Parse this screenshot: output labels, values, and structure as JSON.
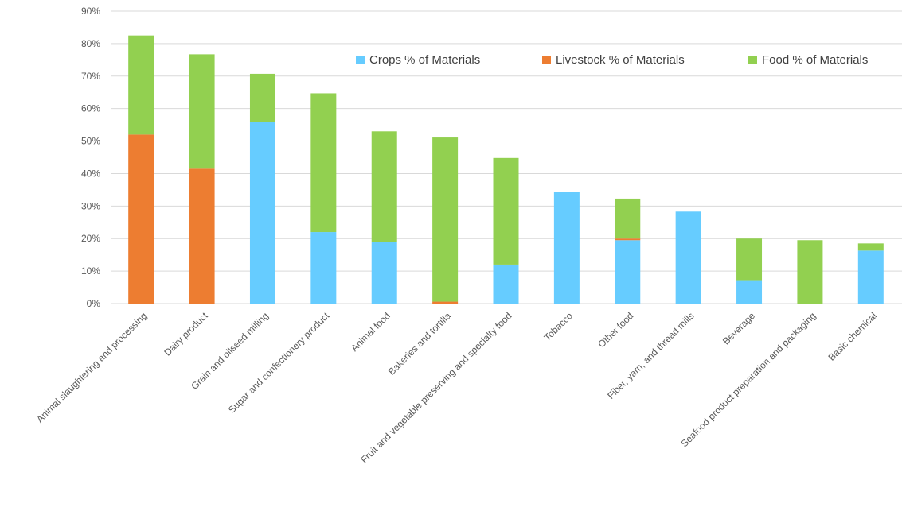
{
  "chart_data": {
    "type": "bar",
    "stacked": true,
    "title": "",
    "xlabel": "",
    "ylabel": "",
    "ylim": [
      0,
      90
    ],
    "yticks": [
      "0%",
      "10%",
      "20%",
      "30%",
      "40%",
      "50%",
      "60%",
      "70%",
      "80%",
      "90%"
    ],
    "grid": true,
    "legend_position": "top-right",
    "categories": [
      "Animal slaughtering and processing",
      "Dairy product",
      "Grain and oilseed milling",
      "Sugar and confectionery product",
      "Animal food",
      "Bakeries and tortilla",
      "Fruit and vegetable preserving and specialty food",
      "Tobacco",
      "Other food",
      "Fiber, yarn, and thread mills",
      "Beverage",
      "Seafood product preparation and packaging",
      "Basic chemical"
    ],
    "series": [
      {
        "name": "Crops % of Materials",
        "color": "#66ccff",
        "values": [
          0,
          0,
          56,
          22,
          19,
          0,
          12,
          34.3,
          19.5,
          28.3,
          7.2,
          0,
          16.3
        ]
      },
      {
        "name": "Livestock % of Materials",
        "color": "#ed7d31",
        "values": [
          52,
          41.5,
          0,
          0,
          0,
          0.6,
          0,
          0,
          0.5,
          0,
          0,
          0,
          0
        ]
      },
      {
        "name": "Food % of Materials",
        "color": "#92d050",
        "values": [
          30.5,
          35.2,
          14.7,
          42.7,
          34,
          50.5,
          32.8,
          0,
          12.3,
          0,
          12.8,
          19.5,
          2.2
        ]
      }
    ]
  }
}
